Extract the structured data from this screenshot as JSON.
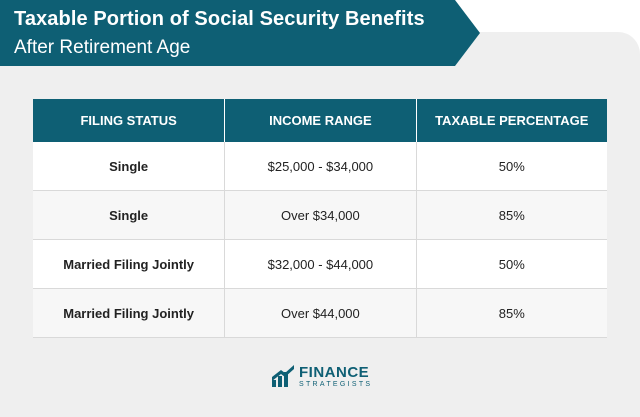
{
  "banner": {
    "title": "Taxable Portion of Social Security Benefits",
    "subtitle": "After Retirement Age"
  },
  "table": {
    "headers": [
      "FILING STATUS",
      "INCOME RANGE",
      "TAXABLE PERCENTAGE"
    ],
    "rows": [
      [
        "Single",
        "$25,000 - $34,000",
        "50%"
      ],
      [
        "Single",
        "Over $34,000",
        "85%"
      ],
      [
        "Married Filing Jointly",
        "$32,000 - $44,000",
        "50%"
      ],
      [
        "Married Filing Jointly",
        "Over $44,000",
        "85%"
      ]
    ]
  },
  "logo": {
    "name": "FINANCE",
    "tagline": "STRATEGISTS",
    "icon": "rising-bars-logo-icon"
  },
  "colors": {
    "accent": "#0e5f74",
    "card_background": "#efefef"
  }
}
